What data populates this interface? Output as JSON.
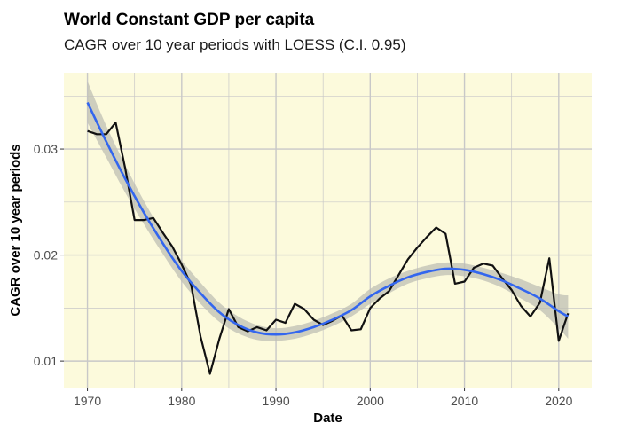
{
  "chart_data": {
    "type": "line",
    "title": "World Constant GDP per capita",
    "subtitle": "CAGR over 10 year periods with LOESS (C.I. 0.95)",
    "xlabel": "Date",
    "ylabel": "CAGR over 10 year periods",
    "xlim": [
      1967.5,
      2023.5
    ],
    "ylim": [
      0.0075,
      0.0372
    ],
    "x_ticks": [
      1970,
      1980,
      1990,
      2000,
      2010,
      2020
    ],
    "y_ticks": [
      0.01,
      0.02,
      0.03
    ],
    "x_tick_labels": [
      "1970",
      "1980",
      "1990",
      "2000",
      "2010",
      "2020"
    ],
    "y_tick_labels": [
      "0.01",
      "0.02",
      "0.03"
    ],
    "grid": true,
    "legend": "none",
    "colors": {
      "panel_background": "#fcfadc",
      "grid": "#c8c8c8",
      "series": "#111111",
      "loess": "#3366ee",
      "ribbon": "#bdbdb3"
    },
    "series": [
      {
        "x": [
          1970,
          1971,
          1972,
          1973,
          1974,
          1975,
          1976,
          1977,
          1978,
          1979,
          1980,
          1981,
          1982,
          1983,
          1984,
          1985,
          1986,
          1987,
          1988,
          1989,
          1990,
          1991,
          1992,
          1993,
          1994,
          1995,
          1996,
          1997,
          1998,
          1999,
          2000,
          2001,
          2002,
          2003,
          2004,
          2005,
          2006,
          2007,
          2008,
          2009,
          2010,
          2011,
          2012,
          2013,
          2014,
          2015,
          2016,
          2017,
          2018,
          2019,
          2020,
          2021
        ],
        "y": [
          0.0317,
          0.0314,
          0.0314,
          0.0325,
          0.0282,
          0.0233,
          0.0233,
          0.0235,
          0.0221,
          0.0208,
          0.0191,
          0.0172,
          0.0123,
          0.0088,
          0.0121,
          0.0149,
          0.0132,
          0.0128,
          0.0132,
          0.0129,
          0.0139,
          0.0136,
          0.0154,
          0.0149,
          0.0139,
          0.0134,
          0.0138,
          0.0143,
          0.0129,
          0.013,
          0.015,
          0.0159,
          0.0166,
          0.0181,
          0.0196,
          0.0207,
          0.0217,
          0.0226,
          0.022,
          0.0173,
          0.0175,
          0.0188,
          0.0192,
          0.019,
          0.0178,
          0.0167,
          0.0152,
          0.0142,
          0.0155,
          0.0197,
          0.0119,
          0.0145
        ]
      },
      {
        "x": [
          1970,
          1972,
          1974,
          1976,
          1978,
          1980,
          1982,
          1984,
          1986,
          1988,
          1990,
          1992,
          1994,
          1996,
          1998,
          2000,
          2002,
          2004,
          2006,
          2008,
          2010,
          2012,
          2014,
          2016,
          2018,
          2020,
          2021
        ],
        "y": [
          0.0344,
          0.0307,
          0.0272,
          0.024,
          0.0211,
          0.0185,
          0.0164,
          0.0146,
          0.0134,
          0.0127,
          0.0125,
          0.0127,
          0.0132,
          0.0139,
          0.0148,
          0.0161,
          0.0171,
          0.0179,
          0.0184,
          0.0187,
          0.0186,
          0.0182,
          0.0176,
          0.0168,
          0.0159,
          0.0147,
          0.0142
        ],
        "ci_low": [
          0.0325,
          0.0292,
          0.0259,
          0.0229,
          0.0201,
          0.0175,
          0.0154,
          0.0137,
          0.0126,
          0.012,
          0.0119,
          0.0121,
          0.0126,
          0.0133,
          0.0142,
          0.0154,
          0.0164,
          0.0173,
          0.0178,
          0.0181,
          0.018,
          0.0176,
          0.0169,
          0.0159,
          0.0148,
          0.0131,
          0.0121
        ],
        "ci_high": [
          0.0364,
          0.0322,
          0.0285,
          0.0251,
          0.0221,
          0.0195,
          0.0174,
          0.0155,
          0.0142,
          0.0134,
          0.0131,
          0.0133,
          0.0138,
          0.0145,
          0.0154,
          0.0168,
          0.0178,
          0.0185,
          0.019,
          0.0193,
          0.0192,
          0.0188,
          0.0183,
          0.0177,
          0.017,
          0.0163,
          0.0162
        ]
      }
    ]
  }
}
